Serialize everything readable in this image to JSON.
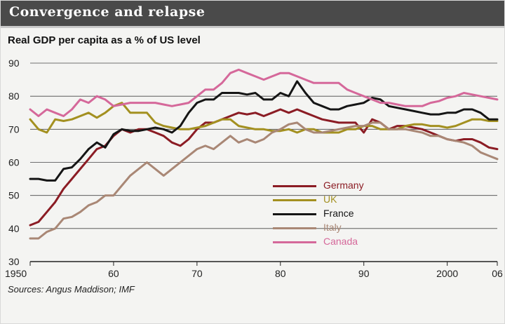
{
  "title": "Convergence and relapse",
  "source": "Sources: Angus Maddison; IMF",
  "colors": {
    "background": "#f4f4f2",
    "title_bar": "#4a4a4a",
    "grid": "#444444"
  },
  "chart_data": {
    "type": "line",
    "title": "Convergence and relapse",
    "subtitle": "Real GDP per capita as a % of US level",
    "xlabel": "",
    "ylabel": "",
    "xlim": [
      1950,
      2006
    ],
    "ylim": [
      30,
      90
    ],
    "x_ticks": [
      1950,
      1960,
      1970,
      1980,
      1990,
      2000,
      2006
    ],
    "x_tick_labels": [
      "1950",
      "60",
      "70",
      "80",
      "90",
      "2000",
      "06"
    ],
    "y_ticks": [
      30,
      40,
      50,
      60,
      70,
      80,
      90
    ],
    "y_tick_labels": [
      "30",
      "40",
      "50",
      "60",
      "70",
      "80",
      "90"
    ],
    "grid": true,
    "legend_position": "bottom-center",
    "series": [
      {
        "name": "Germany",
        "color": "#8b1c24",
        "x": [
          1950,
          1951,
          1952,
          1953,
          1954,
          1955,
          1956,
          1957,
          1958,
          1959,
          1960,
          1961,
          1962,
          1963,
          1964,
          1965,
          1966,
          1967,
          1968,
          1969,
          1970,
          1971,
          1972,
          1973,
          1974,
          1975,
          1976,
          1977,
          1978,
          1979,
          1980,
          1981,
          1982,
          1983,
          1984,
          1985,
          1986,
          1987,
          1988,
          1989,
          1990,
          1991,
          1992,
          1993,
          1994,
          1995,
          1996,
          1997,
          1998,
          1999,
          2000,
          2001,
          2002,
          2003,
          2004,
          2005,
          2006
        ],
        "values": [
          41,
          42,
          45,
          48,
          52,
          55,
          58,
          61,
          64,
          65,
          68,
          70,
          69,
          70,
          70,
          69,
          68,
          66,
          65,
          67,
          70,
          72,
          72,
          73,
          74,
          75,
          74.5,
          75,
          74,
          75,
          76,
          75,
          76,
          75,
          74,
          73,
          72.5,
          72,
          72,
          72,
          69,
          73,
          72,
          70,
          71,
          71,
          70.5,
          70,
          69,
          68,
          67,
          66.5,
          67,
          67,
          66,
          64.5,
          64
        ]
      },
      {
        "name": "UK",
        "color": "#a39020",
        "x": [
          1950,
          1951,
          1952,
          1953,
          1954,
          1955,
          1956,
          1957,
          1958,
          1959,
          1960,
          1961,
          1962,
          1963,
          1964,
          1965,
          1966,
          1967,
          1968,
          1969,
          1970,
          1971,
          1972,
          1973,
          1974,
          1975,
          1976,
          1977,
          1978,
          1979,
          1980,
          1981,
          1982,
          1983,
          1984,
          1985,
          1986,
          1987,
          1988,
          1989,
          1990,
          1991,
          1992,
          1993,
          1994,
          1995,
          1996,
          1997,
          1998,
          1999,
          2000,
          2001,
          2002,
          2003,
          2004,
          2005,
          2006
        ],
        "values": [
          73,
          70,
          69,
          73,
          72.5,
          73,
          74,
          75,
          73.5,
          75,
          77,
          78,
          75,
          75,
          75,
          72,
          71,
          70.5,
          70,
          70,
          70.5,
          71,
          72,
          73,
          73,
          71,
          70.5,
          70,
          70,
          69.5,
          69.5,
          70,
          69,
          70,
          70,
          69,
          69,
          69,
          70,
          70,
          71,
          71,
          70,
          70,
          70,
          71,
          71.5,
          71.5,
          71,
          71,
          70.5,
          71,
          72,
          73,
          73,
          72.5,
          72.5
        ]
      },
      {
        "name": "France",
        "color": "#151515",
        "x": [
          1950,
          1951,
          1952,
          1953,
          1954,
          1955,
          1956,
          1957,
          1958,
          1959,
          1960,
          1961,
          1962,
          1963,
          1964,
          1965,
          1966,
          1967,
          1968,
          1969,
          1970,
          1971,
          1972,
          1973,
          1974,
          1975,
          1976,
          1977,
          1978,
          1979,
          1980,
          1981,
          1982,
          1983,
          1984,
          1985,
          1986,
          1987,
          1988,
          1989,
          1990,
          1991,
          1992,
          1993,
          1994,
          1995,
          1996,
          1997,
          1998,
          1999,
          2000,
          2001,
          2002,
          2003,
          2004,
          2005,
          2006
        ],
        "values": [
          55,
          55,
          54.5,
          54.5,
          58,
          58.5,
          61,
          64,
          66,
          64.5,
          68.5,
          70,
          69.5,
          69.5,
          70,
          70.5,
          70,
          69,
          71,
          75,
          78,
          79,
          79,
          81,
          81,
          81,
          80.5,
          81,
          79,
          79,
          81,
          80,
          84.5,
          81,
          78,
          77,
          76,
          76,
          77,
          77.5,
          78,
          79.5,
          79,
          77,
          76.5,
          76,
          75.5,
          75,
          74.5,
          74.5,
          75,
          75,
          76,
          76,
          75,
          73,
          73
        ]
      },
      {
        "name": "Italy",
        "color": "#a98775",
        "x": [
          1950,
          1951,
          1952,
          1953,
          1954,
          1955,
          1956,
          1957,
          1958,
          1959,
          1960,
          1961,
          1962,
          1963,
          1964,
          1965,
          1966,
          1967,
          1968,
          1969,
          1970,
          1971,
          1972,
          1973,
          1974,
          1975,
          1976,
          1977,
          1978,
          1979,
          1980,
          1981,
          1982,
          1983,
          1984,
          1985,
          1986,
          1987,
          1988,
          1989,
          1990,
          1991,
          1992,
          1993,
          1994,
          1995,
          1996,
          1997,
          1998,
          1999,
          2000,
          2001,
          2002,
          2003,
          2004,
          2005,
          2006
        ],
        "values": [
          37,
          37,
          39,
          40,
          43,
          43.5,
          45,
          47,
          48,
          50,
          50,
          53,
          56,
          58,
          60,
          58,
          56,
          58,
          60,
          62,
          64,
          65,
          64,
          66,
          68,
          66,
          67,
          66,
          67,
          69,
          70,
          71.5,
          72,
          70,
          69,
          69,
          69.5,
          70,
          70.5,
          71,
          71,
          72,
          72,
          70,
          70,
          70,
          69.5,
          69,
          68,
          68,
          67,
          66.5,
          66,
          65,
          63,
          62,
          61
        ]
      },
      {
        "name": "Canada",
        "color": "#d5689a",
        "x": [
          1950,
          1951,
          1952,
          1953,
          1954,
          1955,
          1956,
          1957,
          1958,
          1959,
          1960,
          1961,
          1962,
          1963,
          1964,
          1965,
          1966,
          1967,
          1968,
          1969,
          1970,
          1971,
          1972,
          1973,
          1974,
          1975,
          1976,
          1977,
          1978,
          1979,
          1980,
          1981,
          1982,
          1983,
          1984,
          1985,
          1986,
          1987,
          1988,
          1989,
          1990,
          1991,
          1992,
          1993,
          1994,
          1995,
          1996,
          1997,
          1998,
          1999,
          2000,
          2001,
          2002,
          2003,
          2004,
          2005,
          2006
        ],
        "values": [
          76,
          74,
          76,
          75,
          74,
          76,
          79,
          78,
          80,
          79,
          77,
          77.5,
          78,
          78,
          78,
          78,
          77.5,
          77,
          77.5,
          78,
          80,
          82,
          82,
          84,
          87,
          88,
          87,
          86,
          85,
          86,
          87,
          87,
          86,
          85,
          84,
          84,
          84,
          84,
          82,
          81,
          80,
          79,
          78,
          78,
          77.5,
          77,
          77,
          77,
          78,
          78.5,
          79.5,
          80,
          81,
          80.5,
          80,
          79.5,
          79
        ]
      }
    ]
  }
}
